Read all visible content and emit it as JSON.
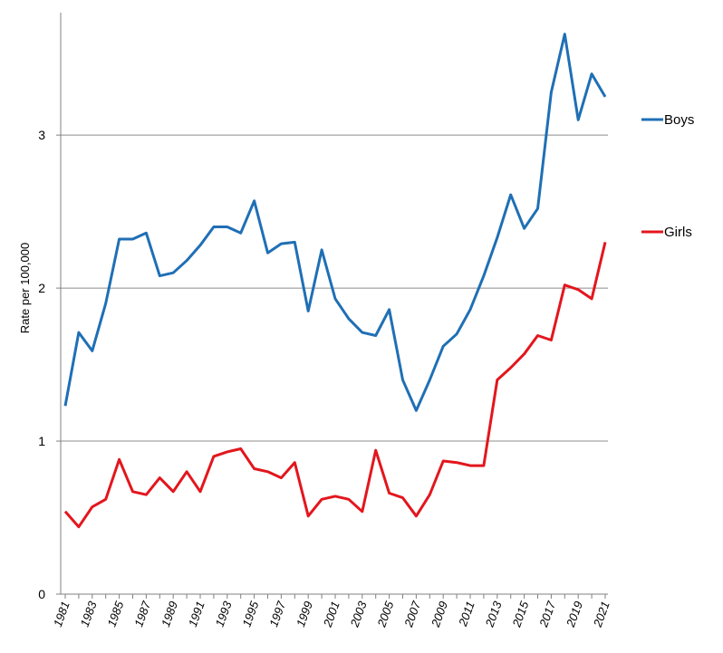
{
  "chart_data": {
    "type": "line",
    "title": "",
    "xlabel": "",
    "ylabel": "Rate per 100,000",
    "ylim": [
      0,
      3.8
    ],
    "yticks": [
      0,
      1,
      2,
      3
    ],
    "grid": "horizontal",
    "legend": "right",
    "x": [
      1981,
      1982,
      1983,
      1984,
      1985,
      1986,
      1987,
      1988,
      1989,
      1990,
      1991,
      1992,
      1993,
      1994,
      1995,
      1996,
      1997,
      1998,
      1999,
      2000,
      2001,
      2002,
      2003,
      2004,
      2005,
      2006,
      2007,
      2008,
      2009,
      2010,
      2011,
      2012,
      2013,
      2014,
      2015,
      2016,
      2017,
      2018,
      2019,
      2020,
      2021
    ],
    "x_tick_labels": [
      "1981",
      "1983",
      "1985",
      "1987",
      "1989",
      "1991",
      "1993",
      "1995",
      "1997",
      "1999",
      "2001",
      "2003",
      "2005",
      "2007",
      "2009",
      "2011",
      "2013",
      "2015",
      "2017",
      "2019",
      "2021"
    ],
    "series": [
      {
        "name": "Boys",
        "color": "#1f6fb5",
        "values": [
          1.23,
          1.71,
          1.59,
          1.9,
          2.32,
          2.32,
          2.36,
          2.08,
          2.1,
          2.18,
          2.28,
          2.4,
          2.4,
          2.36,
          2.57,
          2.23,
          2.29,
          2.3,
          1.85,
          2.25,
          1.93,
          1.8,
          1.71,
          1.69,
          1.86,
          1.4,
          1.2,
          1.4,
          1.62,
          1.7,
          1.86,
          2.08,
          2.33,
          2.61,
          2.39,
          2.52,
          3.28,
          3.66,
          3.1,
          3.4,
          3.25
        ]
      },
      {
        "name": "Girls",
        "color": "#e3161d",
        "values": [
          0.54,
          0.44,
          0.57,
          0.62,
          0.88,
          0.67,
          0.65,
          0.76,
          0.67,
          0.8,
          0.67,
          0.9,
          0.93,
          0.95,
          0.82,
          0.8,
          0.76,
          0.86,
          0.51,
          0.62,
          0.64,
          0.62,
          0.54,
          0.94,
          0.66,
          0.63,
          0.51,
          0.65,
          0.87,
          0.86,
          0.84,
          0.84,
          1.4,
          1.48,
          1.57,
          1.69,
          1.66,
          2.02,
          1.99,
          1.93,
          2.3
        ]
      }
    ]
  }
}
